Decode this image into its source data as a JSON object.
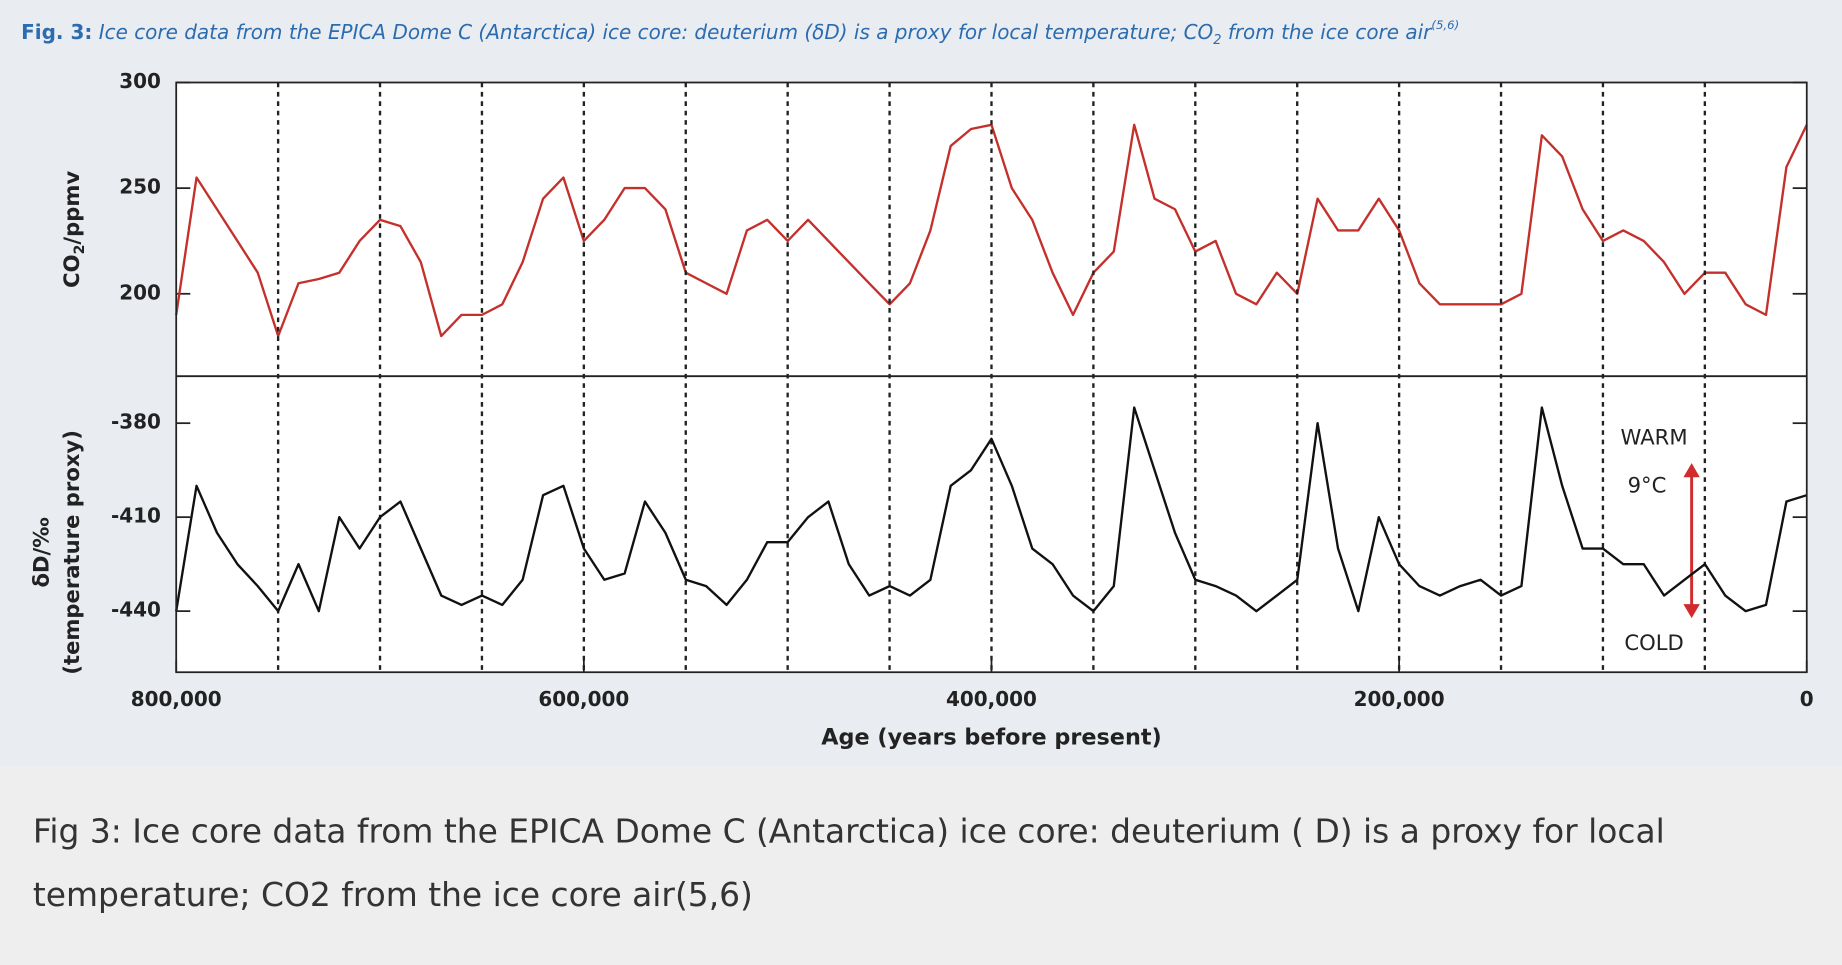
{
  "header": {
    "label": "Fig. 3:",
    "text": "Ice core data from the EPICA Dome C (Antarctica) ice core: deuterium (δD) is a proxy for local temperature; CO",
    "sub": "2",
    "text2": " from the ice core air",
    "sup": "(5,6)"
  },
  "caption": [
    "Fig 3: Ice core data from the EPICA Dome C (Antarctica) ice core: deuterium ( D) is a proxy for local",
    "temperature; CO2 from the ice core air(5,6)"
  ],
  "chart_data": [
    {
      "type": "line",
      "ylabel": [
        "CO",
        "2",
        "/ppmv"
      ],
      "color": "#c4302b",
      "xlim": [
        800000,
        0
      ],
      "ylim": [
        161,
        300
      ],
      "yticks": [
        200,
        250,
        300
      ],
      "x": [
        800000,
        790000,
        780000,
        770000,
        760000,
        750000,
        740000,
        730000,
        720000,
        710000,
        700000,
        690000,
        680000,
        670000,
        660000,
        650000,
        640000,
        630000,
        620000,
        610000,
        600000,
        590000,
        580000,
        570000,
        560000,
        550000,
        540000,
        530000,
        520000,
        510000,
        500000,
        490000,
        480000,
        470000,
        460000,
        450000,
        440000,
        430000,
        420000,
        410000,
        400000,
        390000,
        380000,
        370000,
        360000,
        350000,
        340000,
        330000,
        320000,
        310000,
        300000,
        290000,
        280000,
        270000,
        260000,
        250000,
        240000,
        230000,
        220000,
        210000,
        200000,
        190000,
        180000,
        170000,
        160000,
        150000,
        140000,
        130000,
        120000,
        110000,
        100000,
        90000,
        80000,
        70000,
        60000,
        50000,
        40000,
        30000,
        20000,
        10000,
        0
      ],
      "values": [
        190,
        255,
        240,
        225,
        210,
        180,
        205,
        207,
        210,
        225,
        235,
        232,
        215,
        180,
        190,
        190,
        195,
        215,
        245,
        255,
        225,
        235,
        250,
        250,
        240,
        210,
        205,
        200,
        230,
        235,
        225,
        235,
        225,
        215,
        205,
        195,
        205,
        230,
        270,
        278,
        280,
        250,
        235,
        210,
        190,
        210,
        220,
        280,
        245,
        240,
        220,
        225,
        200,
        195,
        210,
        200,
        245,
        230,
        230,
        245,
        230,
        205,
        195,
        195,
        195,
        195,
        200,
        275,
        265,
        240,
        225,
        230,
        225,
        215,
        200,
        210,
        210,
        195,
        190,
        260,
        280
      ]
    },
    {
      "type": "line",
      "ylabel": [
        "δD/‰",
        "(temperature proxy)"
      ],
      "xlabel": "Age (years before present)",
      "color": "#111111",
      "xlim": [
        800000,
        0
      ],
      "ylim": [
        -459.5,
        -365
      ],
      "yticks": [
        -440,
        -410,
        -380
      ],
      "xticks": [
        {
          "value": 800000,
          "label": "800,000"
        },
        {
          "value": 600000,
          "label": "600,000"
        },
        {
          "value": 400000,
          "label": "400,000"
        },
        {
          "value": 200000,
          "label": "200,000"
        },
        0
      ],
      "vlines": [
        750000,
        700000,
        650000,
        600000,
        550000,
        500000,
        450000,
        400000,
        350000,
        300000,
        250000,
        200000,
        150000,
        100000,
        50000
      ],
      "annotations": [
        "WARM",
        "9°C",
        "COLD"
      ],
      "x": [
        800000,
        790000,
        780000,
        770000,
        760000,
        750000,
        740000,
        730000,
        720000,
        710000,
        700000,
        690000,
        680000,
        670000,
        660000,
        650000,
        640000,
        630000,
        620000,
        610000,
        600000,
        590000,
        580000,
        570000,
        560000,
        550000,
        540000,
        530000,
        520000,
        510000,
        500000,
        490000,
        480000,
        470000,
        460000,
        450000,
        440000,
        430000,
        420000,
        410000,
        400000,
        390000,
        380000,
        370000,
        360000,
        350000,
        340000,
        330000,
        320000,
        310000,
        300000,
        290000,
        280000,
        270000,
        260000,
        250000,
        240000,
        230000,
        220000,
        210000,
        200000,
        190000,
        180000,
        170000,
        160000,
        150000,
        140000,
        130000,
        120000,
        110000,
        100000,
        90000,
        80000,
        70000,
        60000,
        50000,
        40000,
        30000,
        20000,
        10000,
        0
      ],
      "values": [
        -440,
        -400,
        -415,
        -425,
        -432,
        -440,
        -425,
        -440,
        -410,
        -420,
        -410,
        -405,
        -420,
        -435,
        -438,
        -435,
        -438,
        -430,
        -403,
        -400,
        -420,
        -430,
        -428,
        -405,
        -415,
        -430,
        -432,
        -438,
        -430,
        -418,
        -418,
        -410,
        -405,
        -425,
        -435,
        -432,
        -435,
        -430,
        -400,
        -395,
        -385,
        -400,
        -420,
        -425,
        -435,
        -440,
        -432,
        -375,
        -395,
        -415,
        -430,
        -432,
        -435,
        -440,
        -435,
        -430,
        -380,
        -420,
        -440,
        -410,
        -425,
        -432,
        -435,
        -432,
        -430,
        -435,
        -432,
        -375,
        -400,
        -420,
        -420,
        -425,
        -425,
        -435,
        -430,
        -425,
        -435,
        -440,
        -438,
        -405,
        -403
      ]
    }
  ]
}
